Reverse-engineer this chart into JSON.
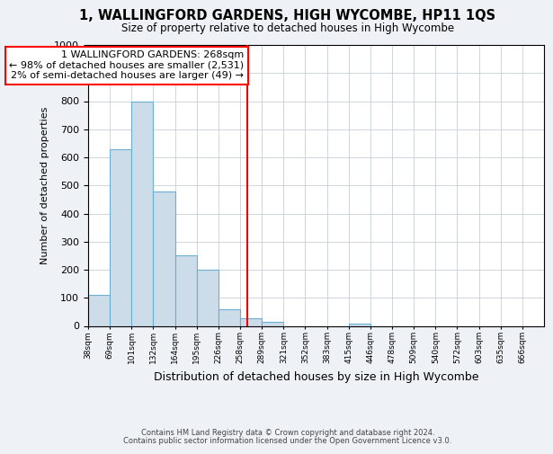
{
  "title": "1, WALLINGFORD GARDENS, HIGH WYCOMBE, HP11 1QS",
  "subtitle": "Size of property relative to detached houses in High Wycombe",
  "xlabel": "Distribution of detached houses by size in High Wycombe",
  "ylabel": "Number of detached properties",
  "footer_line1": "Contains HM Land Registry data © Crown copyright and database right 2024.",
  "footer_line2": "Contains public sector information licensed under the Open Government Licence v3.0.",
  "bin_labels": [
    "38sqm",
    "69sqm",
    "101sqm",
    "132sqm",
    "164sqm",
    "195sqm",
    "226sqm",
    "258sqm",
    "289sqm",
    "321sqm",
    "352sqm",
    "383sqm",
    "415sqm",
    "446sqm",
    "478sqm",
    "509sqm",
    "540sqm",
    "572sqm",
    "603sqm",
    "635sqm",
    "666sqm"
  ],
  "bin_values": [
    110,
    630,
    800,
    480,
    250,
    200,
    60,
    28,
    15,
    0,
    0,
    0,
    7,
    0,
    0,
    0,
    0,
    0,
    0,
    0,
    0
  ],
  "bar_color": "#ccdce9",
  "bar_edgecolor": "#6aafd4",
  "annotation_title": "1 WALLINGFORD GARDENS: 268sqm",
  "annotation_line2": "← 98% of detached houses are smaller (2,531)",
  "annotation_line3": "2% of semi-detached houses are larger (49) →",
  "red_line_x": 7.32,
  "ylim": [
    0,
    1000
  ],
  "yticks": [
    0,
    100,
    200,
    300,
    400,
    500,
    600,
    700,
    800,
    900,
    1000
  ],
  "background_color": "#eef2f7",
  "plot_background": "#ffffff",
  "grid_color": "#c8cdd8"
}
